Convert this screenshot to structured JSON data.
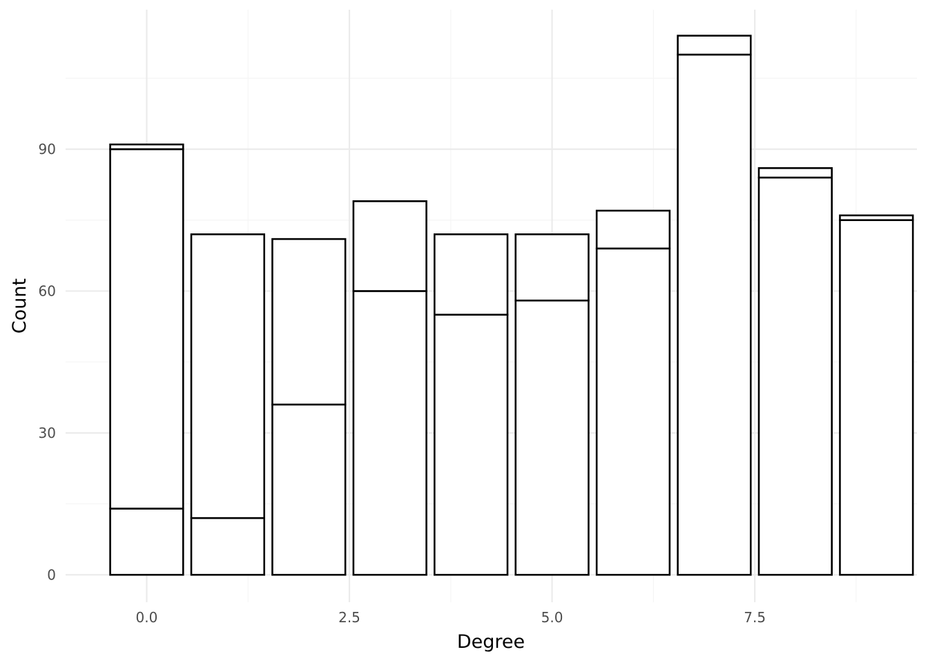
{
  "chart_data": {
    "type": "bar",
    "stacked": true,
    "title": "",
    "xlabel": "Degree",
    "ylabel": "Count",
    "x": [
      0,
      1,
      2,
      3,
      4,
      5,
      6,
      7,
      8,
      9
    ],
    "series": [
      {
        "values": [
          14,
          12,
          36,
          60,
          55,
          58,
          69,
          110,
          84,
          75
        ]
      },
      {
        "values": [
          76,
          60,
          35,
          19,
          17,
          14,
          8,
          4,
          2,
          1
        ]
      },
      {
        "values": [
          1,
          0,
          0,
          0,
          0,
          0,
          0,
          0,
          0,
          0
        ]
      }
    ],
    "totals": [
      91,
      72,
      71,
      79,
      72,
      72,
      77,
      114,
      86,
      76
    ],
    "xlim": [
      -1.0,
      9.5
    ],
    "ylim": [
      -5.8,
      119.5
    ],
    "x_ticks": [
      0,
      2.5,
      5,
      7.5
    ],
    "x_tick_labels": [
      "0.0",
      "2.5",
      "5.0",
      "7.5"
    ],
    "y_ticks": [
      0,
      30,
      60,
      90
    ],
    "y_tick_labels": [
      "0",
      "30",
      "60",
      "90"
    ],
    "grid": true,
    "colors": {
      "bar_fill": "#ffffff",
      "bar_stroke": "#000000",
      "grid_major": "#ebebeb",
      "grid_minor": "#f5f5f5"
    }
  }
}
